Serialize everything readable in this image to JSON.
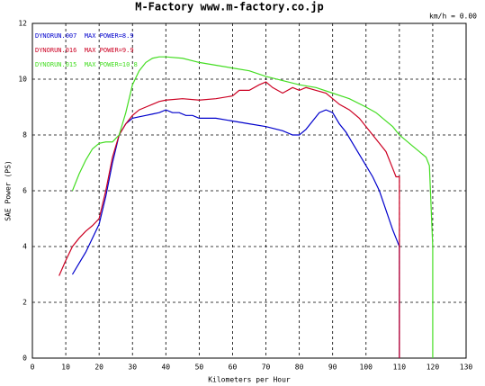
{
  "chart_data": {
    "type": "line",
    "title": "M-Factory  www.m-factory.co.jp",
    "subtitle": "km/h = 0.00",
    "x_label": "Kilometers per Hour",
    "y_label": "SAE Power (PS)",
    "xlim": [
      0,
      130
    ],
    "xticks": [
      0,
      10,
      20,
      30,
      40,
      50,
      60,
      70,
      80,
      90,
      100,
      110,
      120,
      130
    ],
    "ylim": [
      0,
      12
    ],
    "yticks": [
      0,
      2,
      4,
      6,
      8,
      10,
      12
    ],
    "grid": true,
    "series": [
      {
        "name": "DYNORUN.007  MAX POWER=8.9",
        "color": "#0000cc",
        "x": [
          12,
          14,
          16,
          18,
          20,
          22,
          24,
          26,
          28,
          30,
          32,
          34,
          36,
          38,
          40,
          42,
          44,
          46,
          48,
          50,
          55,
          60,
          65,
          70,
          75,
          78,
          80,
          82,
          84,
          86,
          88,
          90,
          92,
          94,
          96,
          98,
          100,
          102,
          104,
          106,
          108,
          109,
          110,
          110
        ],
        "values": [
          3.0,
          3.4,
          3.8,
          4.3,
          4.8,
          5.8,
          7.0,
          8.0,
          8.4,
          8.6,
          8.65,
          8.7,
          8.75,
          8.8,
          8.9,
          8.8,
          8.8,
          8.7,
          8.7,
          8.6,
          8.6,
          8.5,
          8.4,
          8.3,
          8.15,
          8.0,
          8.0,
          8.2,
          8.5,
          8.8,
          8.9,
          8.8,
          8.4,
          8.1,
          7.7,
          7.3,
          6.9,
          6.5,
          6.0,
          5.3,
          4.6,
          4.3,
          4.0,
          0
        ]
      },
      {
        "name": "DYNORUN.016  MAX POWER=9.9",
        "color": "#cc0022",
        "x": [
          8,
          10,
          12,
          14,
          16,
          18,
          20,
          22,
          24,
          26,
          28,
          30,
          32,
          34,
          36,
          38,
          40,
          45,
          50,
          55,
          60,
          62,
          65,
          68,
          70,
          72,
          75,
          78,
          80,
          82,
          85,
          88,
          90,
          92,
          95,
          98,
          100,
          102,
          104,
          106,
          108,
          109,
          110,
          110
        ],
        "values": [
          2.95,
          3.5,
          4.0,
          4.3,
          4.55,
          4.75,
          5.0,
          6.0,
          7.2,
          8.0,
          8.4,
          8.7,
          8.9,
          9.0,
          9.1,
          9.2,
          9.25,
          9.3,
          9.25,
          9.3,
          9.4,
          9.6,
          9.6,
          9.8,
          9.9,
          9.7,
          9.5,
          9.7,
          9.6,
          9.7,
          9.6,
          9.5,
          9.3,
          9.1,
          8.9,
          8.6,
          8.3,
          8.0,
          7.7,
          7.4,
          6.8,
          6.5,
          6.5,
          0
        ]
      },
      {
        "name": "DYNORUN.015  MAX POWER=10.8",
        "color": "#44dd22",
        "x": [
          12,
          14,
          16,
          18,
          20,
          22,
          24,
          26,
          28,
          30,
          32,
          34,
          36,
          38,
          40,
          45,
          50,
          55,
          60,
          65,
          70,
          75,
          80,
          85,
          90,
          95,
          100,
          103,
          105,
          108,
          110,
          112,
          114,
          116,
          118,
          119,
          120,
          120
        ],
        "values": [
          6.0,
          6.6,
          7.1,
          7.5,
          7.7,
          7.75,
          7.75,
          8.0,
          8.8,
          9.8,
          10.3,
          10.6,
          10.75,
          10.8,
          10.8,
          10.75,
          10.6,
          10.5,
          10.4,
          10.3,
          10.1,
          9.95,
          9.8,
          9.7,
          9.5,
          9.3,
          9.0,
          8.8,
          8.6,
          8.3,
          8.0,
          7.8,
          7.6,
          7.4,
          7.2,
          6.9,
          4.0,
          0
        ]
      }
    ]
  }
}
